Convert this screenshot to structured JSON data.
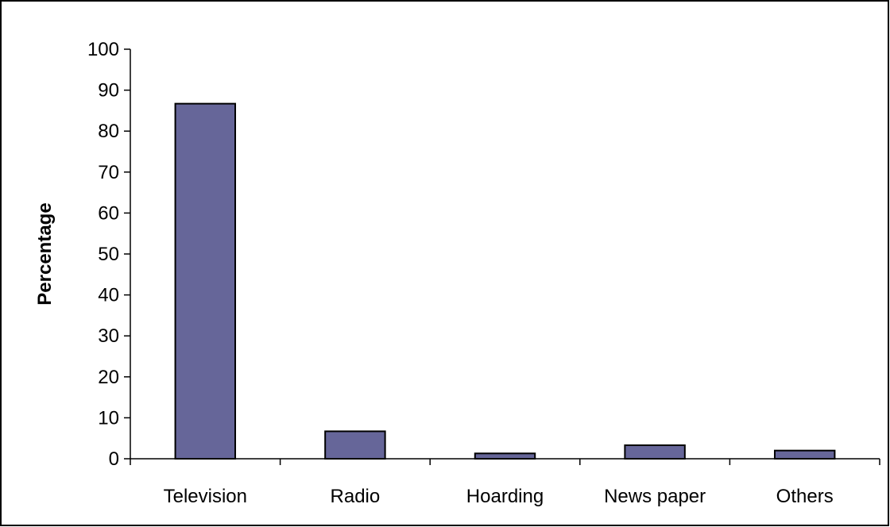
{
  "chart_data": {
    "type": "bar",
    "title": "",
    "xlabel": "",
    "ylabel": "Percentage",
    "categories": [
      "Television",
      "Radio",
      "Hoarding",
      "News paper",
      "Others"
    ],
    "values": [
      86.7,
      6.7,
      1.3,
      3.3,
      2.0
    ],
    "ylim": [
      0,
      100
    ],
    "yticks": [
      0,
      10,
      20,
      30,
      40,
      50,
      60,
      70,
      80,
      90,
      100
    ],
    "grid": false,
    "legend": "none",
    "colors": {
      "bar_fill": "#666699",
      "bar_stroke": "#000000",
      "axis": "#000000",
      "frame": "#000000",
      "background": "#ffffff"
    }
  }
}
